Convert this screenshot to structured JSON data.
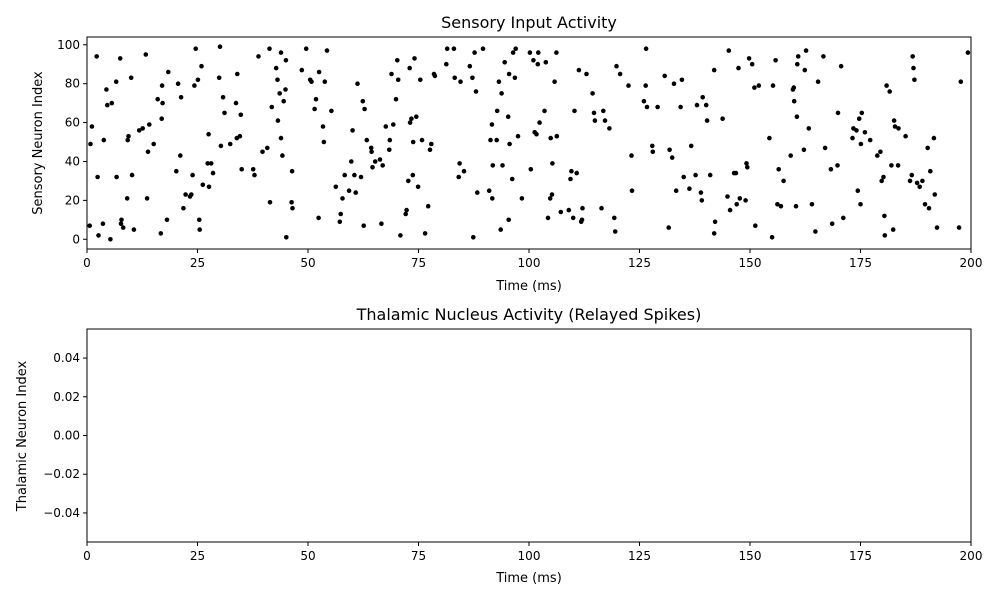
{
  "chart_data": [
    {
      "type": "scatter",
      "title": "Sensory Input Activity",
      "xlabel": "Time (ms)",
      "ylabel": "Sensory Neuron Index",
      "xlim": [
        0,
        200
      ],
      "ylim": [
        -5,
        104
      ],
      "xticks": [
        0,
        25,
        50,
        75,
        100,
        125,
        150,
        175,
        200
      ],
      "yticks": [
        0,
        20,
        40,
        60,
        80,
        100
      ],
      "xtick_labels": [
        "0",
        "25",
        "50",
        "75",
        "100",
        "125",
        "150",
        "175",
        "200"
      ],
      "ytick_labels": [
        "0",
        "20",
        "40",
        "60",
        "80",
        "100"
      ],
      "grid": false,
      "marker_color": "#000000",
      "points": [
        [
          0.6,
          7
        ],
        [
          0.8,
          49
        ],
        [
          1.1,
          58
        ],
        [
          2.2,
          94
        ],
        [
          2.4,
          32
        ],
        [
          2.6,
          2
        ],
        [
          3.6,
          8
        ],
        [
          3.8,
          51
        ],
        [
          4.4,
          77
        ],
        [
          4.6,
          69
        ],
        [
          5.3,
          0
        ],
        [
          5.6,
          70
        ],
        [
          6.6,
          81
        ],
        [
          6.7,
          32
        ],
        [
          7.5,
          93
        ],
        [
          7.7,
          8
        ],
        [
          7.8,
          10
        ],
        [
          8.2,
          6
        ],
        [
          9.1,
          21
        ],
        [
          9.2,
          51
        ],
        [
          9.4,
          53
        ],
        [
          10,
          83
        ],
        [
          10.2,
          33
        ],
        [
          10.6,
          5
        ],
        [
          11.8,
          56
        ],
        [
          12.6,
          57
        ],
        [
          13.3,
          95
        ],
        [
          13.6,
          21
        ],
        [
          13.8,
          45
        ],
        [
          14.1,
          59
        ],
        [
          15.1,
          49
        ],
        [
          16,
          72
        ],
        [
          16.7,
          3
        ],
        [
          16.9,
          62
        ],
        [
          17.0,
          79
        ],
        [
          17.1,
          70
        ],
        [
          18.1,
          10
        ],
        [
          18.4,
          86
        ],
        [
          20.2,
          35
        ],
        [
          20.6,
          80
        ],
        [
          21.1,
          43
        ],
        [
          21.3,
          73
        ],
        [
          21.8,
          16
        ],
        [
          22.3,
          23
        ],
        [
          23.3,
          22
        ],
        [
          23.6,
          23
        ],
        [
          23.9,
          33
        ],
        [
          24.3,
          79
        ],
        [
          24.6,
          98
        ],
        [
          25.1,
          82
        ],
        [
          25.4,
          10
        ],
        [
          25.5,
          5
        ],
        [
          25.9,
          89
        ],
        [
          26.2,
          28
        ],
        [
          27.3,
          39
        ],
        [
          27.5,
          54
        ],
        [
          27.6,
          27
        ],
        [
          28.1,
          39
        ],
        [
          28.5,
          34
        ],
        [
          29.9,
          83
        ],
        [
          30.1,
          99
        ],
        [
          30.3,
          48
        ],
        [
          30.8,
          73
        ],
        [
          31.1,
          65
        ],
        [
          32.4,
          49
        ],
        [
          33.7,
          70
        ],
        [
          33.9,
          52
        ],
        [
          34.0,
          85
        ],
        [
          34.6,
          53
        ],
        [
          34.8,
          64
        ],
        [
          35.0,
          36
        ],
        [
          37.6,
          36
        ],
        [
          37.9,
          33
        ],
        [
          38.8,
          94
        ],
        [
          39.7,
          45
        ],
        [
          40.8,
          47
        ],
        [
          41.3,
          98
        ],
        [
          41.4,
          19
        ],
        [
          41.8,
          68
        ],
        [
          42.8,
          88
        ],
        [
          43.1,
          82
        ],
        [
          43.2,
          61
        ],
        [
          43.6,
          75
        ],
        [
          43.9,
          96
        ],
        [
          43.9,
          52
        ],
        [
          44.2,
          43
        ],
        [
          44.5,
          71
        ],
        [
          44.9,
          77
        ],
        [
          45.0,
          92
        ],
        [
          45.1,
          1
        ],
        [
          46.3,
          19
        ],
        [
          46.4,
          35
        ],
        [
          46.5,
          16
        ],
        [
          48.6,
          87
        ],
        [
          49.6,
          98
        ],
        [
          50.5,
          82
        ],
        [
          50.8,
          81
        ],
        [
          51.5,
          67
        ],
        [
          51.8,
          72
        ],
        [
          52.4,
          11
        ],
        [
          52.5,
          86
        ],
        [
          53.4,
          58
        ],
        [
          53.6,
          50
        ],
        [
          53.8,
          81
        ],
        [
          54.3,
          97
        ],
        [
          55.3,
          66
        ],
        [
          56.3,
          27
        ],
        [
          57.2,
          9
        ],
        [
          57.4,
          13
        ],
        [
          57.8,
          21
        ],
        [
          58.3,
          33
        ],
        [
          59.3,
          25
        ],
        [
          59.8,
          40
        ],
        [
          60.1,
          56
        ],
        [
          60.5,
          33
        ],
        [
          60.8,
          24
        ],
        [
          61.2,
          80
        ],
        [
          62.0,
          32
        ],
        [
          62.4,
          71
        ],
        [
          62.6,
          7
        ],
        [
          62.8,
          67
        ],
        [
          63.3,
          51
        ],
        [
          64.3,
          47
        ],
        [
          64.4,
          45
        ],
        [
          64.6,
          37
        ],
        [
          65.2,
          40
        ],
        [
          66.3,
          41
        ],
        [
          66.6,
          8
        ],
        [
          66.9,
          38
        ],
        [
          67.6,
          58
        ],
        [
          68.4,
          46
        ],
        [
          68.5,
          51
        ],
        [
          68.9,
          85
        ],
        [
          69.3,
          59
        ],
        [
          69.9,
          72
        ],
        [
          70.2,
          92
        ],
        [
          70.4,
          82
        ],
        [
          70.9,
          2
        ],
        [
          72.1,
          13
        ],
        [
          72.3,
          15
        ],
        [
          72.7,
          30
        ],
        [
          73.0,
          88
        ],
        [
          73.1,
          60
        ],
        [
          73.4,
          62
        ],
        [
          73.7,
          33
        ],
        [
          73.8,
          50
        ],
        [
          74.1,
          93
        ],
        [
          74.5,
          63
        ],
        [
          74.9,
          27
        ],
        [
          75.4,
          82
        ],
        [
          75.8,
          51
        ],
        [
          76.5,
          3
        ],
        [
          77.2,
          17
        ],
        [
          77.6,
          46
        ],
        [
          77.9,
          49
        ],
        [
          78.5,
          85
        ],
        [
          78.7,
          84
        ],
        [
          81.3,
          90
        ],
        [
          81.5,
          98
        ],
        [
          83.0,
          98
        ],
        [
          83.2,
          83
        ],
        [
          84.1,
          32
        ],
        [
          84.3,
          39
        ],
        [
          84.5,
          81
        ],
        [
          85.3,
          35
        ],
        [
          86.6,
          89
        ],
        [
          87.2,
          83
        ],
        [
          87.4,
          1
        ],
        [
          87.7,
          96
        ],
        [
          88.0,
          76
        ],
        [
          88.3,
          24
        ],
        [
          89.6,
          98
        ],
        [
          91.0,
          25
        ],
        [
          91.3,
          51
        ],
        [
          91.6,
          59
        ],
        [
          91.7,
          21
        ],
        [
          91.8,
          38
        ],
        [
          92.7,
          51
        ],
        [
          92.8,
          66
        ],
        [
          93.2,
          81
        ],
        [
          93.6,
          5
        ],
        [
          93.8,
          75
        ],
        [
          94.0,
          38
        ],
        [
          94.5,
          91
        ],
        [
          95.3,
          63
        ],
        [
          95.4,
          10
        ],
        [
          95.5,
          85
        ],
        [
          95.6,
          49
        ],
        [
          96.2,
          31
        ],
        [
          96.4,
          96
        ],
        [
          96.8,
          83
        ],
        [
          97.0,
          98
        ],
        [
          97.5,
          53
        ],
        [
          98.4,
          21
        ],
        [
          100.2,
          96
        ],
        [
          100.4,
          36
        ],
        [
          101.0,
          92
        ],
        [
          101.3,
          55
        ],
        [
          101.7,
          54
        ],
        [
          102.0,
          90
        ],
        [
          102.1,
          96
        ],
        [
          102.4,
          60
        ],
        [
          103.5,
          66
        ],
        [
          103.8,
          91
        ],
        [
          104.3,
          11
        ],
        [
          104.8,
          21
        ],
        [
          104.9,
          52
        ],
        [
          105.2,
          23
        ],
        [
          105.3,
          39
        ],
        [
          105.8,
          81
        ],
        [
          106.2,
          96
        ],
        [
          106.3,
          53
        ],
        [
          107.2,
          14
        ],
        [
          109.0,
          15
        ],
        [
          109.4,
          31
        ],
        [
          109.6,
          35
        ],
        [
          110.0,
          11
        ],
        [
          110.3,
          66
        ],
        [
          110.8,
          34
        ],
        [
          111.3,
          87
        ],
        [
          111.8,
          9
        ],
        [
          112.0,
          10
        ],
        [
          112.1,
          16
        ],
        [
          113.0,
          85
        ],
        [
          114.4,
          75
        ],
        [
          114.7,
          65
        ],
        [
          114.9,
          61
        ],
        [
          116.4,
          16
        ],
        [
          116.8,
          66
        ],
        [
          117.2,
          61
        ],
        [
          118.2,
          57
        ],
        [
          119.3,
          11
        ],
        [
          119.5,
          4
        ],
        [
          119.8,
          89
        ],
        [
          120.6,
          85
        ],
        [
          122.5,
          79
        ],
        [
          123.2,
          43
        ],
        [
          123.3,
          25
        ],
        [
          126.0,
          71
        ],
        [
          126.4,
          79
        ],
        [
          126.5,
          98
        ],
        [
          126.7,
          68
        ],
        [
          127.9,
          48
        ],
        [
          128.0,
          45
        ],
        [
          129.1,
          68
        ],
        [
          130.7,
          84
        ],
        [
          131.6,
          6
        ],
        [
          131.8,
          46
        ],
        [
          132.4,
          42
        ],
        [
          132.8,
          80
        ],
        [
          133.3,
          25
        ],
        [
          134.3,
          68
        ],
        [
          134.6,
          82
        ],
        [
          135.0,
          32
        ],
        [
          136.3,
          26
        ],
        [
          136.7,
          48
        ],
        [
          137.7,
          33
        ],
        [
          138.0,
          69
        ],
        [
          138.9,
          24
        ],
        [
          139.1,
          20
        ],
        [
          139.3,
          73
        ],
        [
          140.1,
          69
        ],
        [
          140.3,
          61
        ],
        [
          141.0,
          33
        ],
        [
          141.9,
          3
        ],
        [
          141.9,
          87
        ],
        [
          142.1,
          9
        ],
        [
          143.8,
          62
        ],
        [
          144.9,
          22
        ],
        [
          145.2,
          97
        ],
        [
          145.5,
          15
        ],
        [
          146.4,
          34
        ],
        [
          146.8,
          34
        ],
        [
          147.0,
          18
        ],
        [
          147.4,
          88
        ],
        [
          147.7,
          21
        ],
        [
          149.0,
          20
        ],
        [
          149.2,
          39
        ],
        [
          149.4,
          37
        ],
        [
          149.8,
          93
        ],
        [
          150.5,
          90
        ],
        [
          151.0,
          78
        ],
        [
          151.2,
          7
        ],
        [
          152.0,
          79
        ],
        [
          154.4,
          52
        ],
        [
          155.0,
          1
        ],
        [
          155.2,
          79
        ],
        [
          155.8,
          92
        ],
        [
          156.2,
          18
        ],
        [
          156.5,
          36
        ],
        [
          157.0,
          17
        ],
        [
          157.6,
          30
        ],
        [
          159.2,
          43
        ],
        [
          159.7,
          77
        ],
        [
          159.9,
          78
        ],
        [
          160.0,
          71
        ],
        [
          160.4,
          17
        ],
        [
          160.6,
          63
        ],
        [
          160.7,
          90
        ],
        [
          160.9,
          94
        ],
        [
          162.2,
          46
        ],
        [
          162.4,
          87
        ],
        [
          162.7,
          97
        ],
        [
          163.3,
          57
        ],
        [
          164.0,
          18
        ],
        [
          164.8,
          4
        ],
        [
          165.4,
          81
        ],
        [
          166.6,
          94
        ],
        [
          167.0,
          47
        ],
        [
          168.3,
          36
        ],
        [
          168.6,
          8
        ],
        [
          169.8,
          38
        ],
        [
          169.9,
          65
        ],
        [
          170.6,
          89
        ],
        [
          171.1,
          11
        ],
        [
          173.2,
          52
        ],
        [
          173.4,
          57
        ],
        [
          174.1,
          56
        ],
        [
          174.4,
          25
        ],
        [
          174.7,
          62
        ],
        [
          175.0,
          18
        ],
        [
          175.1,
          49
        ],
        [
          175.3,
          65
        ],
        [
          176.0,
          55
        ],
        [
          177.2,
          51
        ],
        [
          178.8,
          43
        ],
        [
          179.5,
          45
        ],
        [
          179.8,
          30
        ],
        [
          180.2,
          32
        ],
        [
          180.4,
          12
        ],
        [
          180.5,
          2
        ],
        [
          180.9,
          79
        ],
        [
          181.6,
          76
        ],
        [
          182.0,
          38
        ],
        [
          182.4,
          5
        ],
        [
          182.6,
          61
        ],
        [
          182.8,
          58
        ],
        [
          183.5,
          38
        ],
        [
          183.6,
          57
        ],
        [
          185.2,
          53
        ],
        [
          186.2,
          30
        ],
        [
          186.6,
          33
        ],
        [
          186.8,
          94
        ],
        [
          187.0,
          88
        ],
        [
          187.2,
          82
        ],
        [
          187.8,
          29
        ],
        [
          188.4,
          27
        ],
        [
          189.0,
          30
        ],
        [
          189.6,
          18
        ],
        [
          190.2,
          47
        ],
        [
          190.5,
          16
        ],
        [
          190.8,
          35
        ],
        [
          191.6,
          52
        ],
        [
          191.8,
          23
        ],
        [
          192.3,
          6
        ],
        [
          197.3,
          6
        ],
        [
          197.7,
          81
        ],
        [
          199.3,
          96
        ]
      ]
    },
    {
      "type": "scatter",
      "title": "Thalamic Nucleus Activity (Relayed Spikes)",
      "xlabel": "Time (ms)",
      "ylabel": "Thalamic Neuron Index",
      "xlim": [
        0,
        200
      ],
      "ylim": [
        -0.055,
        0.055
      ],
      "xticks": [
        0,
        25,
        50,
        75,
        100,
        125,
        150,
        175,
        200
      ],
      "yticks": [
        -0.04,
        -0.02,
        0.0,
        0.02,
        0.04
      ],
      "xtick_labels": [
        "0",
        "25",
        "50",
        "75",
        "100",
        "125",
        "150",
        "175",
        "200"
      ],
      "ytick_labels": [
        "−0.04",
        "−0.02",
        "0.00",
        "0.02",
        "0.04"
      ],
      "grid": false,
      "marker_color": "#000000",
      "points": []
    }
  ]
}
